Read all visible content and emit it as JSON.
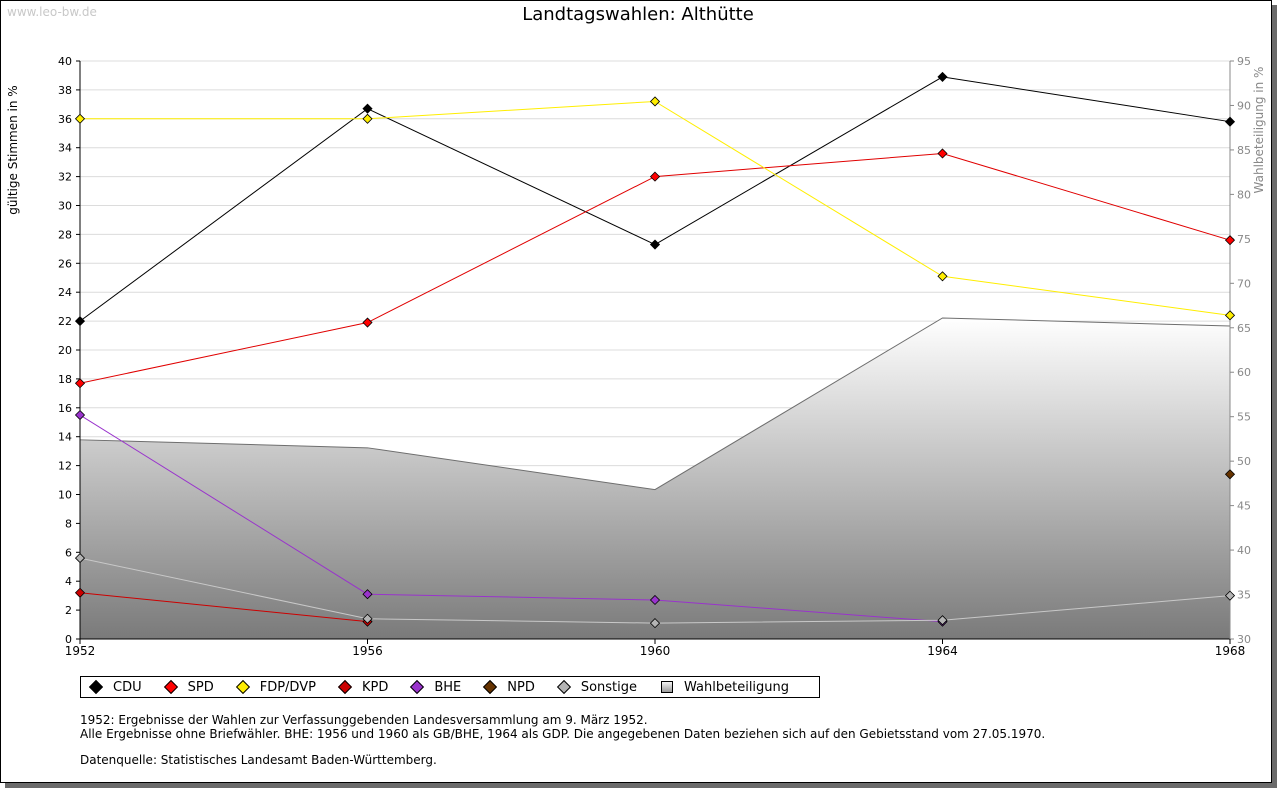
{
  "watermark": "www.leo-bw.de",
  "chart_data": {
    "type": "line",
    "title": "Landtagswahlen: Althütte",
    "ylabel": "gültige Stimmen in %",
    "y2label": "Wahlbeteiligung in %",
    "x": [
      "1952",
      "1956",
      "1960",
      "1964",
      "1968"
    ],
    "ylim": [
      0,
      40
    ],
    "yticks": [
      "0",
      "2",
      "4",
      "6",
      "8",
      "10",
      "12",
      "14",
      "16",
      "18",
      "20",
      "22",
      "24",
      "26",
      "28",
      "30",
      "32",
      "34",
      "36",
      "38",
      "40"
    ],
    "y2lim": [
      30,
      95
    ],
    "y2ticks": [
      "30",
      "35",
      "40",
      "45",
      "50",
      "55",
      "60",
      "65",
      "70",
      "75",
      "80",
      "85",
      "90",
      "95"
    ],
    "series": [
      {
        "name": "CDU",
        "color": "#000000",
        "line": "#000000",
        "values": [
          22.0,
          36.7,
          27.3,
          38.9,
          35.8
        ]
      },
      {
        "name": "SPD",
        "color": "#ff0000",
        "line": "#e00000",
        "values": [
          17.7,
          21.9,
          32.0,
          33.6,
          27.6
        ]
      },
      {
        "name": "FDP/DVP",
        "color": "#ffee00",
        "line": "#ffee00",
        "values": [
          36.0,
          36.0,
          37.2,
          25.1,
          22.4
        ]
      },
      {
        "name": "KPD",
        "color": "#cc0000",
        "line": "#cc0000",
        "values": [
          3.2,
          1.2,
          null,
          null,
          null
        ]
      },
      {
        "name": "BHE",
        "color": "#9933cc",
        "line": "#9933cc",
        "values": [
          15.5,
          3.1,
          2.7,
          1.2,
          null
        ]
      },
      {
        "name": "NPD",
        "color": "#663300",
        "line": "#663300",
        "values": [
          null,
          null,
          null,
          null,
          11.4
        ]
      },
      {
        "name": "Sonstige",
        "color": "#b4b4b4",
        "line": "#c8c8c8",
        "values": [
          5.6,
          1.4,
          1.1,
          1.3,
          3.0
        ]
      }
    ],
    "turnout": {
      "name": "Wahlbeteiligung",
      "values": [
        52.4,
        51.5,
        46.8,
        66.1,
        65.2
      ]
    }
  },
  "legend": {
    "items": [
      {
        "label": "CDU",
        "color": "#000000"
      },
      {
        "label": "SPD",
        "color": "#ff0000"
      },
      {
        "label": "FDP/DVP",
        "color": "#ffee00"
      },
      {
        "label": "KPD",
        "color": "#cc0000"
      },
      {
        "label": "BHE",
        "color": "#9933cc"
      },
      {
        "label": "NPD",
        "color": "#663300"
      },
      {
        "label": "Sonstige",
        "color": "#b4b4b4"
      }
    ],
    "turnout_label": "Wahlbeteiligung"
  },
  "notes": {
    "line1": "1952: Ergebnisse der Wahlen zur Verfassunggebenden Landesversammlung am 9. März 1952.",
    "line2": "Alle Ergebnisse ohne Briefwähler. BHE: 1956 und 1960 als GB/BHE, 1964 als GDP. Die angegebenen Daten beziehen sich auf den Gebietsstand vom 27.05.1970.",
    "source": "Datenquelle: Statistisches Landesamt Baden-Württemberg."
  }
}
